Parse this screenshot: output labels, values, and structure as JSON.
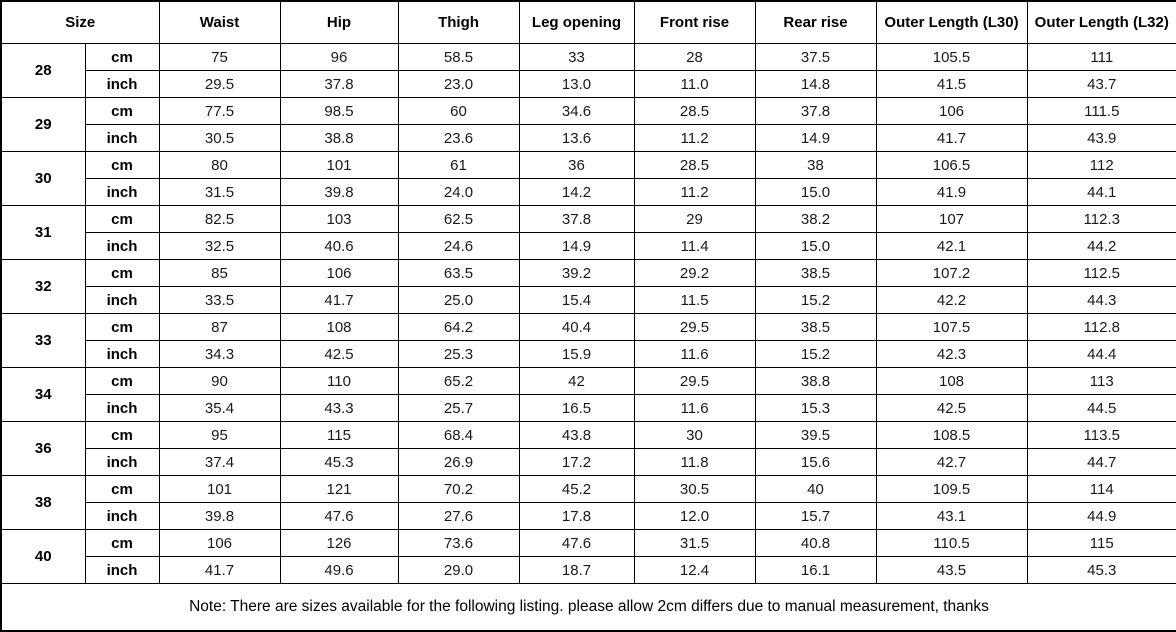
{
  "chart_data": {
    "type": "table",
    "columns": [
      "Size",
      "Waist",
      "Hip",
      "Thigh",
      "Leg opening",
      "Front rise",
      "Rear rise",
      "Outer Length (L30)",
      "Outer Length (L32)"
    ],
    "unit_labels": [
      "cm",
      "inch"
    ],
    "rows": [
      {
        "size": "28",
        "cm": [
          "75",
          "96",
          "58.5",
          "33",
          "28",
          "37.5",
          "105.5",
          "111"
        ],
        "inch": [
          "29.5",
          "37.8",
          "23.0",
          "13.0",
          "11.0",
          "14.8",
          "41.5",
          "43.7"
        ]
      },
      {
        "size": "29",
        "cm": [
          "77.5",
          "98.5",
          "60",
          "34.6",
          "28.5",
          "37.8",
          "106",
          "111.5"
        ],
        "inch": [
          "30.5",
          "38.8",
          "23.6",
          "13.6",
          "11.2",
          "14.9",
          "41.7",
          "43.9"
        ]
      },
      {
        "size": "30",
        "cm": [
          "80",
          "101",
          "61",
          "36",
          "28.5",
          "38",
          "106.5",
          "112"
        ],
        "inch": [
          "31.5",
          "39.8",
          "24.0",
          "14.2",
          "11.2",
          "15.0",
          "41.9",
          "44.1"
        ]
      },
      {
        "size": "31",
        "cm": [
          "82.5",
          "103",
          "62.5",
          "37.8",
          "29",
          "38.2",
          "107",
          "112.3"
        ],
        "inch": [
          "32.5",
          "40.6",
          "24.6",
          "14.9",
          "11.4",
          "15.0",
          "42.1",
          "44.2"
        ]
      },
      {
        "size": "32",
        "cm": [
          "85",
          "106",
          "63.5",
          "39.2",
          "29.2",
          "38.5",
          "107.2",
          "112.5"
        ],
        "inch": [
          "33.5",
          "41.7",
          "25.0",
          "15.4",
          "11.5",
          "15.2",
          "42.2",
          "44.3"
        ]
      },
      {
        "size": "33",
        "cm": [
          "87",
          "108",
          "64.2",
          "40.4",
          "29.5",
          "38.5",
          "107.5",
          "112.8"
        ],
        "inch": [
          "34.3",
          "42.5",
          "25.3",
          "15.9",
          "11.6",
          "15.2",
          "42.3",
          "44.4"
        ]
      },
      {
        "size": "34",
        "cm": [
          "90",
          "110",
          "65.2",
          "42",
          "29.5",
          "38.8",
          "108",
          "113"
        ],
        "inch": [
          "35.4",
          "43.3",
          "25.7",
          "16.5",
          "11.6",
          "15.3",
          "42.5",
          "44.5"
        ]
      },
      {
        "size": "36",
        "cm": [
          "95",
          "115",
          "68.4",
          "43.8",
          "30",
          "39.5",
          "108.5",
          "113.5"
        ],
        "inch": [
          "37.4",
          "45.3",
          "26.9",
          "17.2",
          "11.8",
          "15.6",
          "42.7",
          "44.7"
        ]
      },
      {
        "size": "38",
        "cm": [
          "101",
          "121",
          "70.2",
          "45.2",
          "30.5",
          "40",
          "109.5",
          "114"
        ],
        "inch": [
          "39.8",
          "47.6",
          "27.6",
          "17.8",
          "12.0",
          "15.7",
          "43.1",
          "44.9"
        ]
      },
      {
        "size": "40",
        "cm": [
          "106",
          "126",
          "73.6",
          "47.6",
          "31.5",
          "40.8",
          "110.5",
          "115"
        ],
        "inch": [
          "41.7",
          "49.6",
          "29.0",
          "18.7",
          "12.4",
          "16.1",
          "43.5",
          "45.3"
        ]
      }
    ],
    "note": "Note: There are sizes available for the following listing. please allow 2cm differs due to manual measurement, thanks"
  }
}
